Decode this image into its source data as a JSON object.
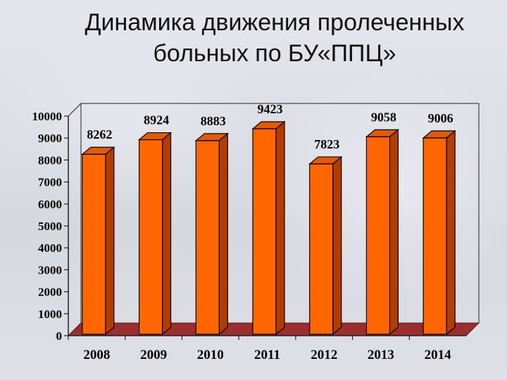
{
  "title": "Динамика движения пролеченных больных по БУ«ППЦ»",
  "colors": {
    "bar_front": "#ff6600",
    "bar_side": "#b33c00",
    "bar_top": "#e05a08",
    "floor": "#9a2d2d",
    "grid": "#222222"
  },
  "chart_data": {
    "type": "bar",
    "categories": [
      "2008",
      "2009",
      "2010",
      "2011",
      "2012",
      "2013",
      "2014"
    ],
    "values": [
      8262,
      8924,
      8883,
      9423,
      7823,
      9058,
      9006
    ],
    "data_labels": [
      "8262",
      "8924",
      "8883",
      "9423",
      "7823",
      "9058",
      "9006"
    ],
    "ylim": [
      0,
      10000
    ],
    "yticks": [
      "0",
      "1000",
      "2000",
      "3000",
      "4000",
      "5000",
      "6000",
      "7000",
      "8000",
      "9000",
      "10000"
    ],
    "grid": false,
    "legend": "none"
  }
}
